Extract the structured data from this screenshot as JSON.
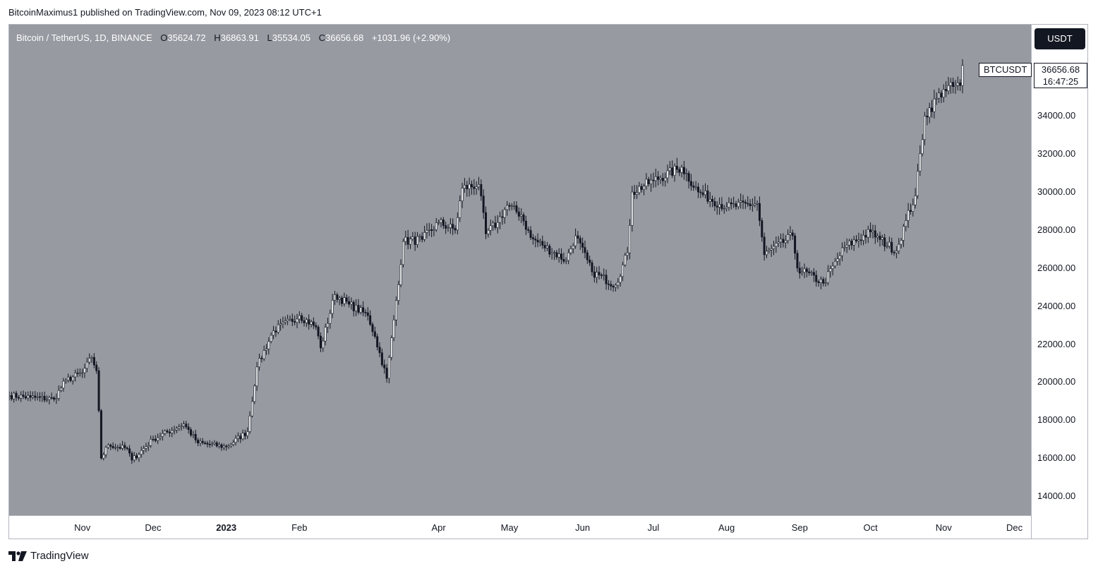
{
  "publish_line": "BitcoinMaximus1 published on TradingView.com, Nov 09, 2023 08:12 UTC+1",
  "header": {
    "symbol": "Bitcoin / TetherUS, 1D, BINANCE",
    "o_label": "O",
    "o_value": "35624.72",
    "h_label": "H",
    "h_value": "36863.91",
    "l_label": "L",
    "l_value": "35534.05",
    "c_label": "C",
    "c_value": "36656.68",
    "change": "+1031.96 (+2.90%)"
  },
  "currency_button": "USDT",
  "last_price": {
    "symbol": "BTCUSDT",
    "price": "36656.68",
    "countdown": "16:47:25"
  },
  "footer_brand": "TradingView",
  "colors": {
    "plot_bg": "#979aa1",
    "candle": "#131722",
    "up_body": "#ffffff"
  },
  "chart_data": {
    "type": "candlestick",
    "ylim": [
      13000,
      38800
    ],
    "yticks": [
      14000,
      16000,
      18000,
      20000,
      22000,
      24000,
      26000,
      28000,
      30000,
      32000,
      34000
    ],
    "ytick_labels": [
      "14000.00",
      "16000.00",
      "18000.00",
      "20000.00",
      "22000.00",
      "24000.00",
      "26000.00",
      "28000.00",
      "30000.00",
      "32000.00",
      "34000.00"
    ],
    "xlim": [
      "2022-10-01",
      "2023-12-08"
    ],
    "xticks": [
      {
        "date": "2022-11-01",
        "label": "Nov"
      },
      {
        "date": "2022-12-01",
        "label": "Dec"
      },
      {
        "date": "2023-01-01",
        "label": "2023",
        "bold": true
      },
      {
        "date": "2023-02-01",
        "label": "Feb"
      },
      {
        "date": "2023-04-01",
        "label": "Apr"
      },
      {
        "date": "2023-05-01",
        "label": "May"
      },
      {
        "date": "2023-06-01",
        "label": "Jun"
      },
      {
        "date": "2023-07-01",
        "label": "Jul"
      },
      {
        "date": "2023-08-01",
        "label": "Aug"
      },
      {
        "date": "2023-09-01",
        "label": "Sep"
      },
      {
        "date": "2023-10-01",
        "label": "Oct"
      },
      {
        "date": "2023-11-01",
        "label": "Nov"
      },
      {
        "date": "2023-12-01",
        "label": "Dec"
      }
    ],
    "close_path": [
      [
        "2022-10-01",
        19300
      ],
      [
        "2022-10-10",
        19200
      ],
      [
        "2022-10-20",
        19100
      ],
      [
        "2022-10-25",
        20100
      ],
      [
        "2022-11-01",
        20500
      ],
      [
        "2022-11-05",
        21300
      ],
      [
        "2022-11-07",
        20600
      ],
      [
        "2022-11-08",
        18500
      ],
      [
        "2022-11-09",
        16000
      ],
      [
        "2022-11-12",
        16700
      ],
      [
        "2022-11-20",
        16500
      ],
      [
        "2022-11-22",
        15900
      ],
      [
        "2022-12-01",
        17000
      ],
      [
        "2022-12-14",
        17800
      ],
      [
        "2022-12-20",
        16800
      ],
      [
        "2023-01-01",
        16600
      ],
      [
        "2023-01-10",
        17400
      ],
      [
        "2023-01-14",
        20800
      ],
      [
        "2023-01-21",
        22700
      ],
      [
        "2023-02-01",
        23500
      ],
      [
        "2023-02-08",
        22900
      ],
      [
        "2023-02-10",
        21800
      ],
      [
        "2023-02-16",
        24600
      ],
      [
        "2023-02-22",
        24100
      ],
      [
        "2023-03-02",
        23500
      ],
      [
        "2023-03-05",
        22400
      ],
      [
        "2023-03-10",
        20200
      ],
      [
        "2023-03-14",
        24300
      ],
      [
        "2023-03-17",
        27400
      ],
      [
        "2023-03-25",
        27500
      ],
      [
        "2023-04-01",
        28400
      ],
      [
        "2023-04-08",
        28000
      ],
      [
        "2023-04-11",
        30200
      ],
      [
        "2023-04-18",
        30400
      ],
      [
        "2023-04-21",
        27800
      ],
      [
        "2023-04-26",
        28400
      ],
      [
        "2023-04-30",
        29300
      ],
      [
        "2023-05-06",
        28800
      ],
      [
        "2023-05-10",
        27600
      ],
      [
        "2023-05-15",
        27200
      ],
      [
        "2023-05-25",
        26400
      ],
      [
        "2023-05-29",
        27700
      ],
      [
        "2023-06-05",
        25800
      ],
      [
        "2023-06-15",
        25100
      ],
      [
        "2023-06-20",
        26800
      ],
      [
        "2023-06-22",
        30000
      ],
      [
        "2023-07-01",
        30600
      ],
      [
        "2023-07-13",
        31300
      ],
      [
        "2023-07-20",
        30000
      ],
      [
        "2023-08-01",
        29200
      ],
      [
        "2023-08-14",
        29400
      ],
      [
        "2023-08-17",
        26700
      ],
      [
        "2023-08-29",
        27700
      ],
      [
        "2023-08-31",
        26000
      ],
      [
        "2023-09-11",
        25200
      ],
      [
        "2023-09-20",
        27100
      ],
      [
        "2023-10-01",
        27900
      ],
      [
        "2023-10-05",
        27500
      ],
      [
        "2023-10-12",
        26900
      ],
      [
        "2023-10-16",
        28500
      ],
      [
        "2023-10-20",
        29800
      ],
      [
        "2023-10-24",
        34000
      ],
      [
        "2023-11-01",
        35400
      ],
      [
        "2023-11-08",
        35600
      ],
      [
        "2023-11-09",
        36656
      ]
    ]
  }
}
